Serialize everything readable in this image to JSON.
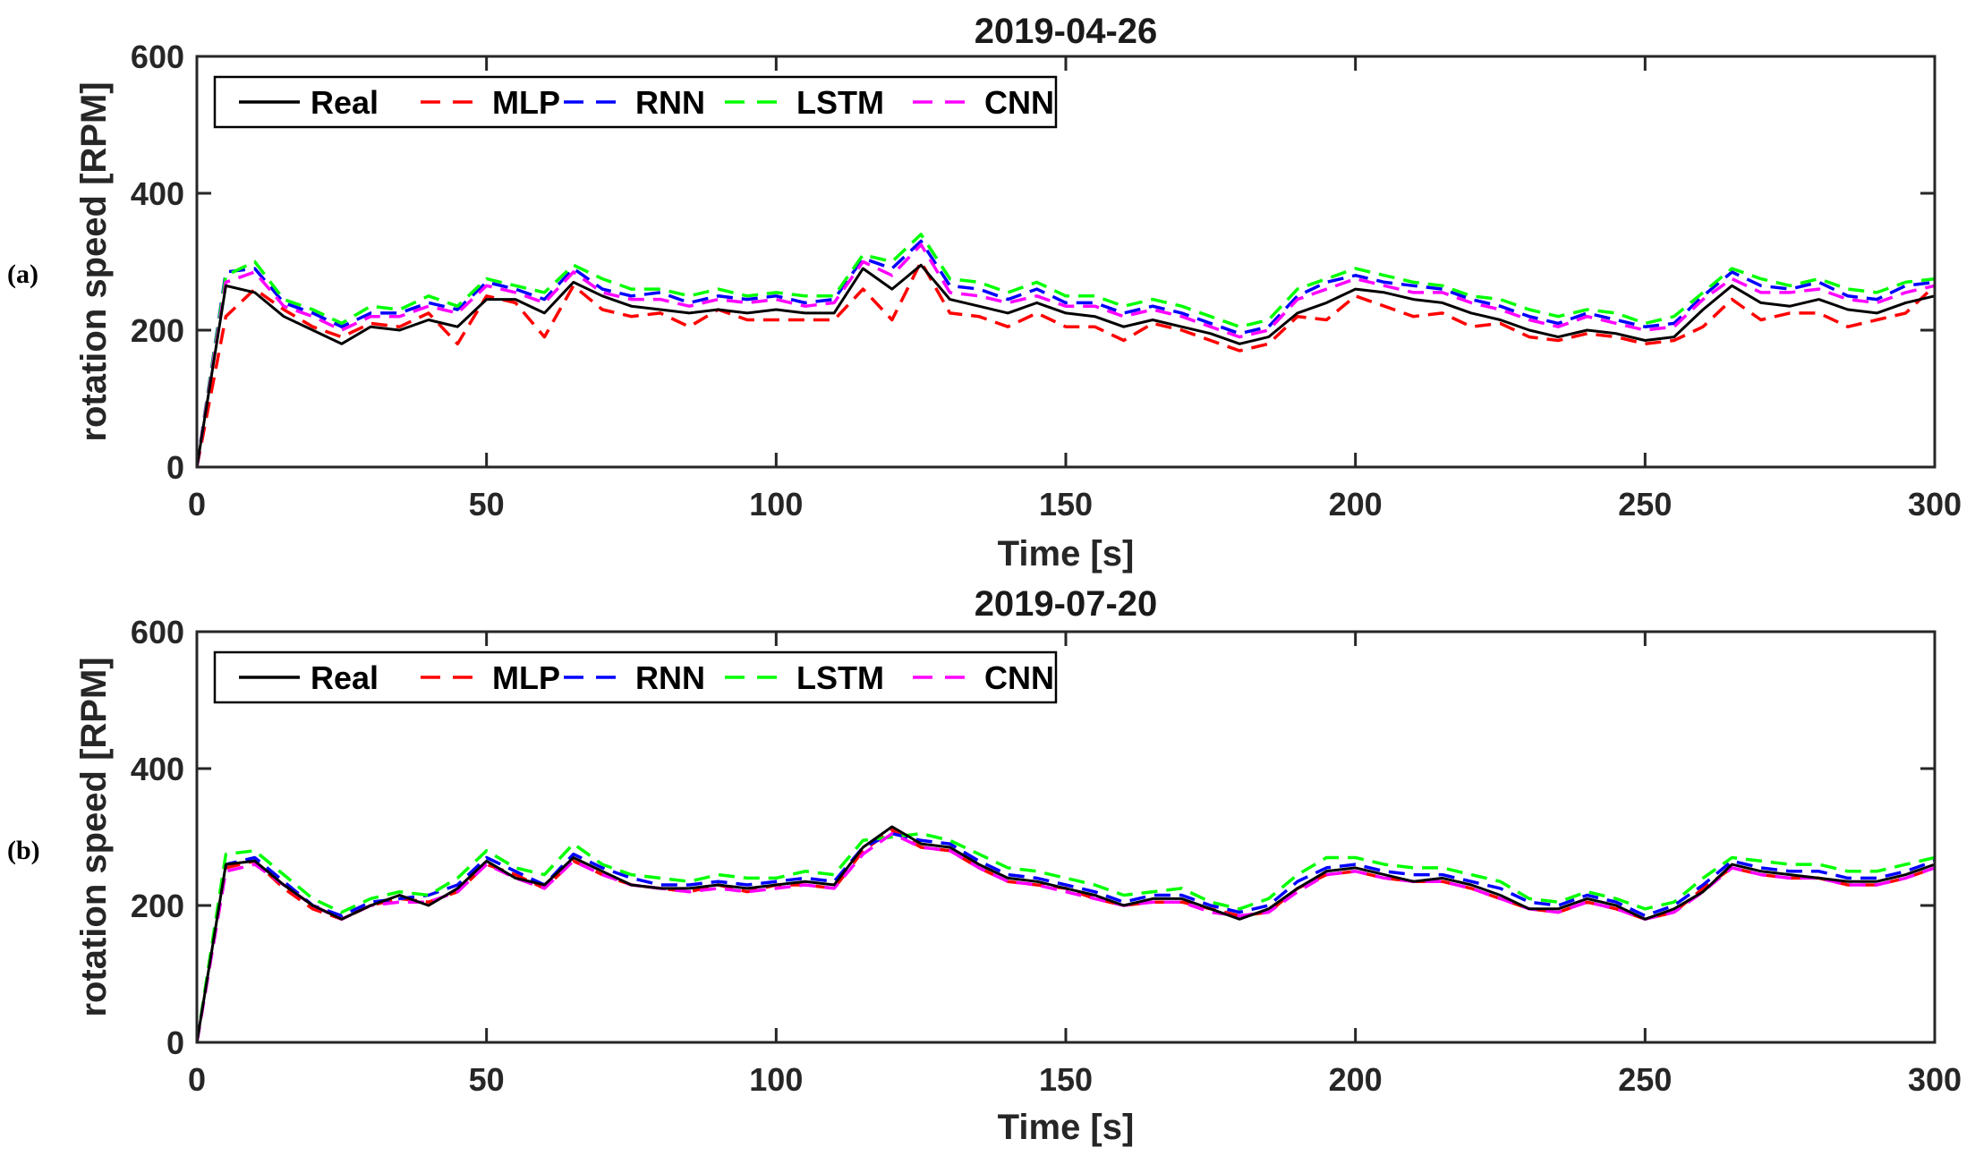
{
  "colors": {
    "Real": "#000000",
    "MLP": "#ff0000",
    "RNN": "#0000ff",
    "LSTM": "#00ff00",
    "CNN": "#ff00ff",
    "axis": "#262626"
  },
  "panels": [
    {
      "label": "(a)"
    },
    {
      "label": "(b)"
    }
  ],
  "chart_data": [
    {
      "type": "line",
      "title": "2019-04-26",
      "xlabel": "Time [s]",
      "ylabel": "rotation speed [RPM]",
      "xlim": [
        0,
        300
      ],
      "ylim": [
        0,
        600
      ],
      "xticks": [
        0,
        50,
        100,
        150,
        200,
        250,
        300
      ],
      "yticks": [
        0,
        200,
        400,
        600
      ],
      "grid": false,
      "legend_position": "top-left",
      "legend_orientation": "horizontal",
      "x": [
        0,
        5,
        10,
        15,
        20,
        25,
        30,
        35,
        40,
        45,
        50,
        55,
        60,
        65,
        70,
        75,
        80,
        85,
        90,
        95,
        100,
        105,
        110,
        115,
        120,
        125,
        130,
        135,
        140,
        145,
        150,
        155,
        160,
        165,
        170,
        175,
        180,
        185,
        190,
        195,
        200,
        205,
        210,
        215,
        220,
        225,
        230,
        235,
        240,
        245,
        250,
        255,
        260,
        265,
        270,
        275,
        280,
        285,
        290,
        295,
        300
      ],
      "series": [
        {
          "name": "Real",
          "style": "solid",
          "values": [
            0,
            265,
            255,
            220,
            200,
            180,
            205,
            200,
            215,
            205,
            245,
            245,
            225,
            270,
            250,
            235,
            230,
            225,
            230,
            225,
            230,
            225,
            225,
            290,
            260,
            295,
            245,
            235,
            225,
            240,
            225,
            220,
            205,
            215,
            205,
            195,
            180,
            190,
            225,
            240,
            260,
            255,
            245,
            240,
            225,
            215,
            200,
            190,
            200,
            195,
            185,
            190,
            230,
            265,
            240,
            235,
            245,
            230,
            225,
            240,
            250
          ]
        },
        {
          "name": "MLP",
          "style": "dashed",
          "values": [
            0,
            220,
            260,
            230,
            205,
            190,
            210,
            205,
            225,
            180,
            250,
            240,
            190,
            265,
            230,
            220,
            225,
            205,
            230,
            215,
            215,
            215,
            215,
            260,
            215,
            300,
            225,
            220,
            205,
            225,
            205,
            205,
            185,
            210,
            200,
            185,
            170,
            180,
            220,
            215,
            250,
            235,
            220,
            225,
            205,
            210,
            190,
            185,
            195,
            190,
            180,
            185,
            205,
            245,
            215,
            225,
            225,
            205,
            215,
            225,
            265
          ]
        },
        {
          "name": "RNN",
          "style": "dashed",
          "values": [
            0,
            285,
            290,
            240,
            225,
            205,
            225,
            225,
            240,
            230,
            270,
            260,
            245,
            290,
            260,
            250,
            255,
            240,
            250,
            245,
            250,
            240,
            245,
            305,
            290,
            330,
            265,
            260,
            245,
            260,
            240,
            240,
            225,
            235,
            225,
            210,
            195,
            205,
            250,
            270,
            280,
            270,
            265,
            260,
            245,
            235,
            220,
            210,
            225,
            215,
            205,
            210,
            250,
            285,
            265,
            260,
            270,
            250,
            245,
            265,
            270
          ]
        },
        {
          "name": "LSTM",
          "style": "dashed",
          "values": [
            0,
            280,
            300,
            245,
            230,
            210,
            235,
            230,
            250,
            235,
            275,
            265,
            255,
            295,
            275,
            260,
            260,
            250,
            260,
            250,
            255,
            250,
            250,
            310,
            300,
            340,
            275,
            270,
            255,
            270,
            250,
            250,
            235,
            245,
            235,
            220,
            205,
            215,
            260,
            275,
            290,
            280,
            270,
            265,
            250,
            245,
            230,
            220,
            230,
            225,
            210,
            220,
            255,
            290,
            275,
            265,
            275,
            260,
            255,
            270,
            275
          ]
        },
        {
          "name": "CNN",
          "style": "dashed",
          "values": [
            0,
            270,
            285,
            235,
            220,
            200,
            220,
            220,
            235,
            225,
            265,
            255,
            240,
            285,
            255,
            245,
            245,
            235,
            245,
            240,
            245,
            235,
            240,
            300,
            280,
            325,
            255,
            250,
            240,
            250,
            235,
            235,
            220,
            230,
            220,
            205,
            190,
            200,
            245,
            260,
            275,
            265,
            255,
            255,
            240,
            230,
            215,
            205,
            220,
            210,
            200,
            205,
            245,
            275,
            255,
            255,
            260,
            245,
            240,
            255,
            265
          ]
        }
      ]
    },
    {
      "type": "line",
      "title": "2019-07-20",
      "xlabel": "Time [s]",
      "ylabel": "rotation speed [RPM]",
      "xlim": [
        0,
        300
      ],
      "ylim": [
        0,
        600
      ],
      "xticks": [
        0,
        50,
        100,
        150,
        200,
        250,
        300
      ],
      "yticks": [
        0,
        200,
        400,
        600
      ],
      "grid": false,
      "legend_position": "top-left",
      "legend_orientation": "horizontal",
      "x": [
        0,
        5,
        10,
        15,
        20,
        25,
        30,
        35,
        40,
        45,
        50,
        55,
        60,
        65,
        70,
        75,
        80,
        85,
        90,
        95,
        100,
        105,
        110,
        115,
        120,
        125,
        130,
        135,
        140,
        145,
        150,
        155,
        160,
        165,
        170,
        175,
        180,
        185,
        190,
        195,
        200,
        205,
        210,
        215,
        220,
        225,
        230,
        235,
        240,
        245,
        250,
        255,
        260,
        265,
        270,
        275,
        280,
        285,
        290,
        295,
        300
      ],
      "series": [
        {
          "name": "Real",
          "style": "solid",
          "values": [
            0,
            260,
            265,
            230,
            200,
            180,
            200,
            215,
            200,
            225,
            265,
            240,
            230,
            270,
            250,
            230,
            225,
            225,
            230,
            225,
            230,
            235,
            230,
            285,
            315,
            290,
            285,
            260,
            240,
            235,
            225,
            215,
            200,
            210,
            210,
            195,
            180,
            195,
            225,
            250,
            255,
            245,
            235,
            240,
            230,
            215,
            195,
            195,
            210,
            200,
            180,
            195,
            220,
            260,
            250,
            245,
            240,
            235,
            235,
            245,
            260
          ]
        },
        {
          "name": "MLP",
          "style": "dashed",
          "values": [
            0,
            255,
            265,
            225,
            195,
            180,
            200,
            210,
            205,
            220,
            260,
            245,
            225,
            265,
            245,
            230,
            225,
            220,
            230,
            220,
            230,
            230,
            225,
            280,
            310,
            285,
            280,
            255,
            235,
            230,
            225,
            210,
            200,
            205,
            205,
            195,
            185,
            190,
            225,
            245,
            250,
            240,
            235,
            235,
            225,
            210,
            195,
            190,
            205,
            195,
            180,
            190,
            225,
            255,
            245,
            240,
            240,
            230,
            230,
            240,
            255
          ]
        },
        {
          "name": "RNN",
          "style": "dashed",
          "values": [
            0,
            260,
            270,
            235,
            200,
            185,
            205,
            210,
            215,
            230,
            270,
            250,
            230,
            275,
            255,
            240,
            230,
            230,
            235,
            230,
            235,
            240,
            235,
            285,
            305,
            295,
            290,
            265,
            245,
            240,
            230,
            220,
            205,
            215,
            215,
            200,
            190,
            200,
            235,
            255,
            260,
            250,
            245,
            245,
            235,
            225,
            205,
            200,
            215,
            205,
            185,
            200,
            230,
            265,
            255,
            250,
            250,
            240,
            240,
            250,
            265
          ]
        },
        {
          "name": "LSTM",
          "style": "dashed",
          "values": [
            0,
            275,
            280,
            245,
            210,
            190,
            210,
            220,
            215,
            240,
            280,
            255,
            245,
            290,
            260,
            245,
            240,
            235,
            245,
            240,
            240,
            250,
            245,
            295,
            300,
            305,
            295,
            275,
            255,
            250,
            240,
            230,
            215,
            220,
            225,
            205,
            195,
            210,
            245,
            270,
            270,
            260,
            255,
            255,
            245,
            235,
            210,
            205,
            220,
            210,
            195,
            205,
            240,
            270,
            265,
            260,
            260,
            250,
            250,
            260,
            270
          ]
        },
        {
          "name": "CNN",
          "style": "dashed",
          "values": [
            0,
            250,
            260,
            230,
            200,
            180,
            200,
            205,
            205,
            220,
            260,
            240,
            225,
            265,
            245,
            230,
            225,
            220,
            225,
            220,
            225,
            230,
            225,
            275,
            305,
            285,
            280,
            255,
            235,
            230,
            220,
            210,
            200,
            205,
            205,
            190,
            185,
            190,
            220,
            245,
            250,
            240,
            235,
            235,
            225,
            210,
            195,
            190,
            205,
            195,
            180,
            190,
            220,
            255,
            245,
            240,
            240,
            230,
            230,
            240,
            255
          ]
        }
      ]
    }
  ]
}
